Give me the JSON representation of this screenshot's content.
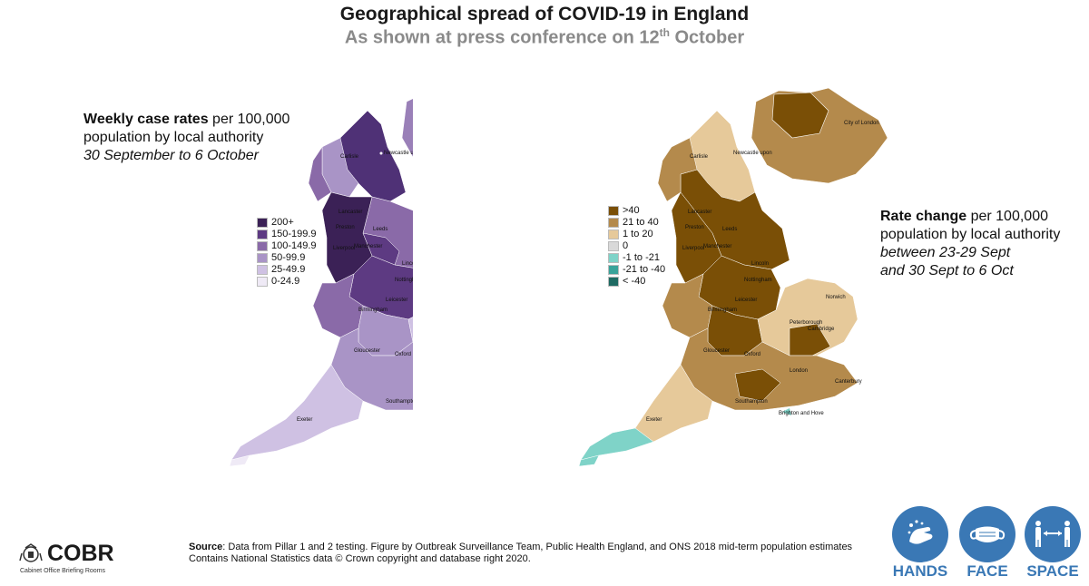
{
  "header": {
    "title": "Geographical spread of COVID-19 in England",
    "subtitle_prefix": "As shown at press conference on 12",
    "subtitle_sup": "th",
    "subtitle_suffix": " October"
  },
  "left_map": {
    "caption_bold": "Weekly case rates",
    "caption_rest": " per 100,000",
    "caption_line2": "population by local authority",
    "caption_line3": "30 September to 6 October",
    "legend": [
      {
        "label": "200+",
        "color": "#3b2156"
      },
      {
        "label": "150-199.9",
        "color": "#5d3a82"
      },
      {
        "label": "100-149.9",
        "color": "#8a6aa8"
      },
      {
        "label": "50-99.9",
        "color": "#a994c6"
      },
      {
        "label": "25-49.9",
        "color": "#cfc1e3"
      },
      {
        "label": "0-24.9",
        "color": "#efeaf6"
      }
    ]
  },
  "right_map": {
    "caption_bold": "Rate change",
    "caption_rest": " per 100,000",
    "caption_line2": "population by local authority",
    "caption_line3": "between 23-29 Sept",
    "caption_line4": "and 30 Sept to 6 Oct",
    "legend": [
      {
        "label": ">40",
        "color": "#7a4f06"
      },
      {
        "label": "21 to 40",
        "color": "#b48a4c"
      },
      {
        "label": "1 to 20",
        "color": "#e6c99a"
      },
      {
        "label": "0",
        "color": "#d9d9d9"
      },
      {
        "label": "-1 to -21",
        "color": "#7fd3c8"
      },
      {
        "label": "-21 to -40",
        "color": "#3aa39a"
      },
      {
        "label": "< -40",
        "color": "#1f6b63"
      }
    ]
  },
  "map_labels": {
    "city_of_london": "City of London",
    "newcastle": "Newcastle upon",
    "carlisle": "Carlisle",
    "lancaster": "Lancaster",
    "preston": "Preston",
    "leeds": "Leeds",
    "liverpool": "Liverpool",
    "manchester": "Manchester",
    "lincoln": "Lincoln",
    "nottingham": "Nottingham",
    "leicester": "Leicester",
    "birmingham": "Birmingham",
    "norwich": "Norwich",
    "peterborough": "Peterborough",
    "cambridge": "Cambridge",
    "gloucester": "Gloucester",
    "oxford": "Oxford",
    "london": "London",
    "canterbury": "Canterbury",
    "exeter": "Exeter",
    "southampton": "Southampton",
    "brighton": "Brighton and Hove"
  },
  "footer": {
    "source_label": "Source",
    "source_text": ": Data from Pillar 1 and 2 testing. Figure by Outbreak Surveillance Team, Public Health England, and ONS 2018 mid-term population estimates",
    "source_line2": "Contains National Statistics data © Crown copyright and database right 2020.",
    "cobr": "COBR",
    "cobr_sub": "Cabinet Office Briefing Rooms",
    "badges": [
      "HANDS",
      "FACE",
      "SPACE"
    ],
    "badge_color": "#3a78b5"
  }
}
